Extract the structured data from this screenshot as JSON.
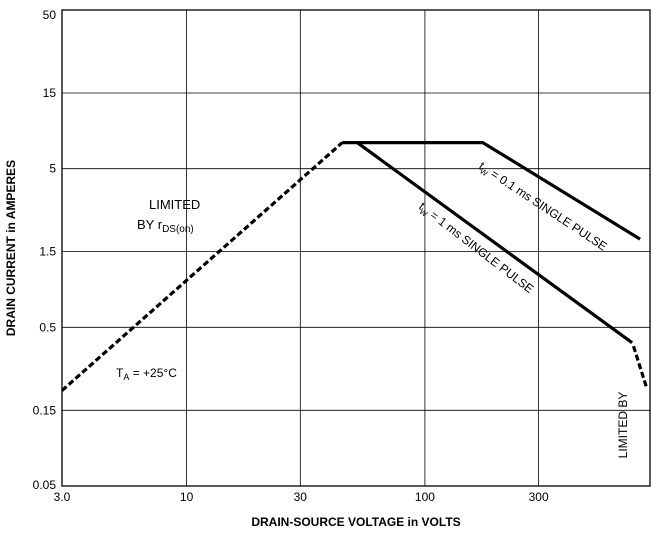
{
  "chart_data": {
    "type": "line",
    "xlabel": "DRAIN-SOURCE VOLTAGE in VOLTS",
    "ylabel": "DRAIN CURRENT in AMPERES",
    "xscale": "log",
    "yscale": "log",
    "xlim": [
      3.0,
      880
    ],
    "ylim": [
      0.05,
      50
    ],
    "x_ticks": [
      3.0,
      10,
      30,
      100,
      300
    ],
    "x_tick_labels": [
      "3.0",
      "10",
      "30",
      "100",
      "300"
    ],
    "y_ticks": [
      0.05,
      0.15,
      0.5,
      1.5,
      5,
      15,
      50
    ],
    "y_tick_labels": [
      "0.05",
      "0.15",
      "0.5",
      "1.5",
      "5",
      "15",
      "50"
    ],
    "grid": true,
    "legend": "none",
    "series": [
      {
        "x": [
          3.0,
          45
        ],
        "y": [
          0.2,
          7.3
        ],
        "style": "dashed"
      },
      {
        "x": [
          45,
          175,
          800
        ],
        "y": [
          7.3,
          7.3,
          1.8
        ],
        "style": "solid"
      },
      {
        "x": [
          52,
          740
        ],
        "y": [
          7.3,
          0.4
        ],
        "style": "solid"
      },
      {
        "x": [
          750,
          850
        ],
        "y": [
          0.38,
          0.21
        ],
        "style": "dashed"
      }
    ],
    "annotations": {
      "rds_line1": "LIMITED",
      "rds_line2_prefix": "BY r",
      "rds_line2_sub": "DS(on)",
      "temp_prefix": "T",
      "temp_sub": "A",
      "temp_suffix": " = +25°C",
      "pulse_short_prefix": "t",
      "pulse_short_sub": "W",
      "pulse_short_suffix": " = 0.1 ms SINGLE PULSE",
      "pulse_long_prefix": "t",
      "pulse_long_sub": "W",
      "pulse_long_suffix": " = 1 ms SINGLE PULSE",
      "limited_by": "LIMITED BY"
    }
  }
}
